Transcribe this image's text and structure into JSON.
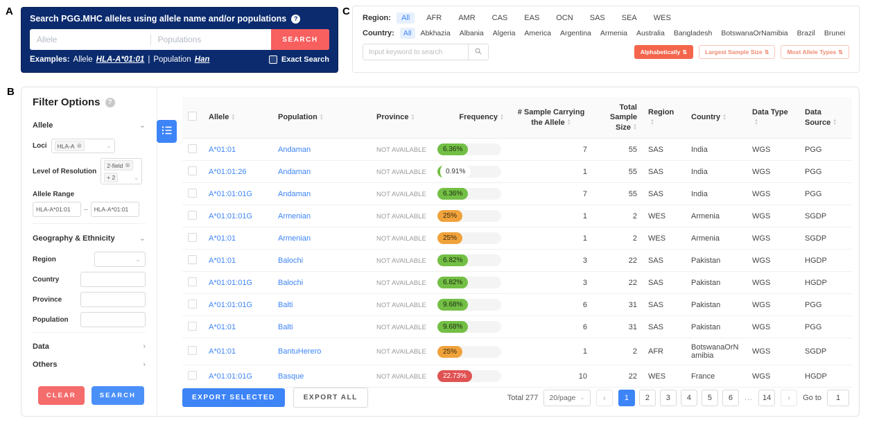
{
  "panel_labels": {
    "a": "A",
    "b": "B",
    "c": "C"
  },
  "icons": {
    "help": "?",
    "caret_down": "⌄",
    "chevron_down": "⌄",
    "chevron_right": "›",
    "tag_close": "⊗",
    "sort": "⇅",
    "dash": "–",
    "prev": "‹",
    "next": "›"
  },
  "search_panel": {
    "title": "Search PGG.MHC alleles using allele name and/or populations",
    "allele_placeholder": "Allele",
    "populations_placeholder": "Populations",
    "search_button": "SEARCH",
    "examples_label": "Examples:",
    "example_allele_prefix": "Allele",
    "example_allele": "HLA-A*01:01",
    "examples_divider": "|",
    "example_population_prefix": "Population",
    "example_population": "Han",
    "exact_search_label": "Exact Search"
  },
  "region_country_panel": {
    "region_label": "Region:",
    "regions": [
      "All",
      "AFR",
      "AMR",
      "CAS",
      "EAS",
      "OCN",
      "SAS",
      "SEA",
      "WES"
    ],
    "selected_region": "All",
    "country_label": "Country:",
    "countries": [
      "All",
      "Abkhazia",
      "Albania",
      "Algeria",
      "America",
      "Argentina",
      "Armenia",
      "Australia",
      "Bangladesh",
      "BotswanaOrNamibia",
      "Brazil",
      "Brunei"
    ],
    "selected_country": "All",
    "keyword_placeholder": "Input keyword to search",
    "sorts": [
      {
        "label": "Alphabetically",
        "active": true
      },
      {
        "label": "Largest Sample Size",
        "active": false
      },
      {
        "label": "Most Allele Types",
        "active": false
      }
    ]
  },
  "filter_panel": {
    "title": "Filter Options",
    "allele_section": {
      "title": "Allele",
      "loci_label": "Loci",
      "loci_tag": "HLA-A",
      "resolution_label": "Level of Resolution",
      "resolution_tag": "2-field",
      "resolution_extra": "+ 2",
      "range_label": "Allele Range",
      "range_from": "HLA-A*01:01",
      "range_to": "HLA-A*01:01"
    },
    "geo_section": {
      "title": "Geography & Ethnicity",
      "region_label": "Region",
      "country_label": "Country",
      "province_label": "Province",
      "population_label": "Population"
    },
    "data_section_title": "Data",
    "others_section_title": "Others",
    "clear_button": "CLEAR",
    "search_button": "SEARCH"
  },
  "table": {
    "columns": [
      "Allele",
      "Population",
      "Province",
      "Frequency",
      "# Sample Carrying the Allele",
      "Total Sample Size",
      "Region",
      "Country",
      "Data Type",
      "Data Source"
    ],
    "rows": [
      {
        "allele": "A*01:01",
        "population": "Andaman",
        "province": "NOT AVAILABLE",
        "frequency": "6.36%",
        "level": "green",
        "samples": "7",
        "total": "55",
        "region": "SAS",
        "country": "India",
        "data_type": "WGS",
        "data_source": "PGG"
      },
      {
        "allele": "A*01:01:26",
        "population": "Andaman",
        "province": "NOT AVAILABLE",
        "frequency": "0.91%",
        "level": "low",
        "samples": "1",
        "total": "55",
        "region": "SAS",
        "country": "India",
        "data_type": "WGS",
        "data_source": "PGG"
      },
      {
        "allele": "A*01:01:01G",
        "population": "Andaman",
        "province": "NOT AVAILABLE",
        "frequency": "6.36%",
        "level": "green",
        "samples": "7",
        "total": "55",
        "region": "SAS",
        "country": "India",
        "data_type": "WGS",
        "data_source": "PGG"
      },
      {
        "allele": "A*01:01:01G",
        "population": "Armenian",
        "province": "NOT AVAILABLE",
        "frequency": "25%",
        "level": "orange",
        "samples": "1",
        "total": "2",
        "region": "WES",
        "country": "Armenia",
        "data_type": "WGS",
        "data_source": "SGDP"
      },
      {
        "allele": "A*01:01",
        "population": "Armenian",
        "province": "NOT AVAILABLE",
        "frequency": "25%",
        "level": "orange",
        "samples": "1",
        "total": "2",
        "region": "WES",
        "country": "Armenia",
        "data_type": "WGS",
        "data_source": "SGDP"
      },
      {
        "allele": "A*01:01",
        "population": "Balochi",
        "province": "NOT AVAILABLE",
        "frequency": "6.82%",
        "level": "green",
        "samples": "3",
        "total": "22",
        "region": "SAS",
        "country": "Pakistan",
        "data_type": "WGS",
        "data_source": "HGDP"
      },
      {
        "allele": "A*01:01:01G",
        "population": "Balochi",
        "province": "NOT AVAILABLE",
        "frequency": "6.82%",
        "level": "green",
        "samples": "3",
        "total": "22",
        "region": "SAS",
        "country": "Pakistan",
        "data_type": "WGS",
        "data_source": "HGDP"
      },
      {
        "allele": "A*01:01:01G",
        "population": "Balti",
        "province": "NOT AVAILABLE",
        "frequency": "9.68%",
        "level": "green",
        "samples": "6",
        "total": "31",
        "region": "SAS",
        "country": "Pakistan",
        "data_type": "WGS",
        "data_source": "PGG"
      },
      {
        "allele": "A*01:01",
        "population": "Balti",
        "province": "NOT AVAILABLE",
        "frequency": "9.68%",
        "level": "green",
        "samples": "6",
        "total": "31",
        "region": "SAS",
        "country": "Pakistan",
        "data_type": "WGS",
        "data_source": "PGG"
      },
      {
        "allele": "A*01:01",
        "population": "BantuHerero",
        "province": "NOT AVAILABLE",
        "frequency": "25%",
        "level": "orange",
        "samples": "1",
        "total": "2",
        "region": "AFR",
        "country": "BotswanaOrNamibia",
        "data_type": "WGS",
        "data_source": "SGDP"
      },
      {
        "allele": "A*01:01:01G",
        "population": "Basque",
        "province": "NOT AVAILABLE",
        "frequency": "22.73%",
        "level": "red",
        "samples": "10",
        "total": "22",
        "region": "WES",
        "country": "France",
        "data_type": "WGS",
        "data_source": "HGDP"
      }
    ]
  },
  "footer": {
    "export_selected": "EXPORT SELECTED",
    "export_all": "EXPORT ALL",
    "total_label": "Total 277",
    "page_size": "20/page",
    "pages": [
      "1",
      "2",
      "3",
      "4",
      "5",
      "6",
      "...",
      "14"
    ],
    "active_page": "1",
    "goto_label": "Go to",
    "goto_value": "1"
  }
}
